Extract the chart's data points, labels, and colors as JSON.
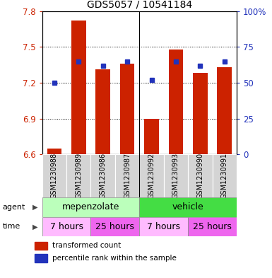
{
  "title": "GDS5057 / 10541184",
  "samples": [
    "GSM1230988",
    "GSM1230989",
    "GSM1230986",
    "GSM1230987",
    "GSM1230992",
    "GSM1230993",
    "GSM1230990",
    "GSM1230991"
  ],
  "bar_values": [
    6.65,
    7.72,
    7.31,
    7.36,
    6.9,
    7.48,
    7.28,
    7.33
  ],
  "bar_base": 6.6,
  "percentile_values": [
    50,
    65,
    62,
    65,
    52,
    65,
    62,
    65
  ],
  "ylim": [
    6.6,
    7.8
  ],
  "yticks_left": [
    6.6,
    6.9,
    7.2,
    7.5,
    7.8
  ],
  "yticks_right": [
    0,
    25,
    50,
    75,
    100
  ],
  "bar_color": "#cc2200",
  "blue_color": "#2233bb",
  "agent_groups": [
    {
      "label": "mepenzolate",
      "start": 0,
      "end": 4,
      "color": "#bbffbb"
    },
    {
      "label": "vehicle",
      "start": 4,
      "end": 8,
      "color": "#44dd44"
    }
  ],
  "time_groups": [
    {
      "label": "7 hours",
      "start": 0,
      "end": 2,
      "color": "#ffbbff"
    },
    {
      "label": "25 hours",
      "start": 2,
      "end": 4,
      "color": "#ee66ee"
    },
    {
      "label": "7 hours",
      "start": 4,
      "end": 6,
      "color": "#ffbbff"
    },
    {
      "label": "25 hours",
      "start": 6,
      "end": 8,
      "color": "#ee66ee"
    }
  ],
  "legend_items": [
    {
      "color": "#cc2200",
      "label": "transformed count"
    },
    {
      "color": "#2233bb",
      "label": "percentile rank within the sample"
    }
  ],
  "bar_width": 0.6,
  "group_divider": 3.5
}
